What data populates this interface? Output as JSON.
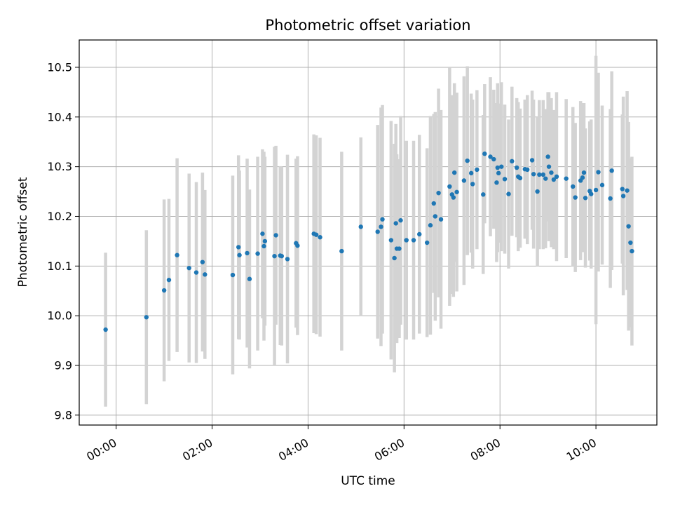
{
  "chart_data": {
    "type": "scatter",
    "title": "Photometric offset variation",
    "xlabel": "UTC time",
    "ylabel": "Photometric offset",
    "xlim": [
      -0.77,
      11.27
    ],
    "ylim": [
      9.78,
      10.555
    ],
    "x_unit": "hours",
    "xticks": [
      0,
      2,
      4,
      6,
      8,
      10
    ],
    "xtick_labels": [
      "00:00",
      "02:00",
      "04:00",
      "06:00",
      "08:00",
      "10:00"
    ],
    "yticks": [
      9.8,
      9.9,
      10.0,
      10.1,
      10.2,
      10.3,
      10.4,
      10.5
    ],
    "ytick_labels": [
      "9.8",
      "9.9",
      "10.0",
      "10.1",
      "10.2",
      "10.3",
      "10.4",
      "10.5"
    ],
    "grid": true,
    "colors": {
      "point": "#1f77b4",
      "errorbar": "#d3d3d3",
      "grid": "#b0b0b0",
      "axes": "#000000"
    },
    "series": [
      {
        "name": "photometric offset",
        "x": [
          -0.22,
          0.63,
          1.0,
          1.1,
          1.27,
          1.52,
          1.67,
          1.8,
          1.85,
          2.43,
          2.55,
          2.57,
          2.73,
          2.78,
          2.95,
          3.05,
          3.08,
          3.1,
          3.3,
          3.33,
          3.42,
          3.45,
          3.57,
          3.75,
          3.78,
          4.12,
          4.17,
          4.25,
          4.7,
          5.1,
          5.45,
          5.52,
          5.55,
          5.73,
          5.8,
          5.83,
          5.85,
          5.9,
          5.93,
          6.05,
          6.2,
          6.32,
          6.48,
          6.55,
          6.62,
          6.65,
          6.72,
          6.77,
          6.95,
          7.0,
          7.03,
          7.05,
          7.1,
          7.25,
          7.32,
          7.4,
          7.43,
          7.52,
          7.65,
          7.68,
          7.8,
          7.87,
          7.93,
          7.95,
          7.97,
          8.03,
          8.1,
          8.18,
          8.25,
          8.35,
          8.38,
          8.42,
          8.52,
          8.57,
          8.67,
          8.7,
          8.78,
          8.82,
          8.9,
          8.95,
          9.0,
          9.02,
          9.07,
          9.12,
          9.18,
          9.38,
          9.52,
          9.57,
          9.68,
          9.72,
          9.75,
          9.78,
          9.87,
          9.9,
          10.0,
          10.05,
          10.13,
          10.3,
          10.33,
          10.55,
          10.57,
          10.65,
          10.68,
          10.72,
          10.75
        ],
        "y": [
          9.972,
          9.997,
          10.051,
          10.072,
          10.122,
          10.096,
          10.087,
          10.108,
          10.083,
          10.082,
          10.138,
          10.122,
          10.126,
          10.074,
          10.125,
          10.165,
          10.14,
          10.15,
          10.12,
          10.162,
          10.121,
          10.12,
          10.114,
          10.146,
          10.141,
          10.165,
          10.163,
          10.158,
          10.13,
          10.179,
          10.169,
          10.179,
          10.194,
          10.152,
          10.116,
          10.186,
          10.135,
          10.135,
          10.192,
          10.152,
          10.152,
          10.164,
          10.147,
          10.182,
          10.226,
          10.2,
          10.247,
          10.194,
          10.26,
          10.244,
          10.238,
          10.288,
          10.249,
          10.272,
          10.312,
          10.287,
          10.265,
          10.294,
          10.244,
          10.326,
          10.32,
          10.315,
          10.268,
          10.298,
          10.287,
          10.3,
          10.275,
          10.245,
          10.311,
          10.298,
          10.28,
          10.277,
          10.295,
          10.294,
          10.313,
          10.285,
          10.25,
          10.284,
          10.284,
          10.276,
          10.32,
          10.3,
          10.288,
          10.274,
          10.28,
          10.276,
          10.26,
          10.238,
          10.272,
          10.278,
          10.288,
          10.237,
          10.251,
          10.245,
          10.253,
          10.289,
          10.263,
          10.236,
          10.292,
          10.255,
          10.241,
          10.252,
          10.18,
          10.147,
          10.13
        ],
        "yerr": [
          0.155,
          0.175,
          0.183,
          0.163,
          0.195,
          0.19,
          0.182,
          0.18,
          0.17,
          0.2,
          0.185,
          0.17,
          0.19,
          0.18,
          0.195,
          0.17,
          0.19,
          0.17,
          0.22,
          0.18,
          0.18,
          0.18,
          0.21,
          0.17,
          0.18,
          0.2,
          0.2,
          0.2,
          0.2,
          0.18,
          0.215,
          0.24,
          0.23,
          0.24,
          0.23,
          0.2,
          0.19,
          0.18,
          0.21,
          0.2,
          0.2,
          0.2,
          0.19,
          0.22,
          0.18,
          0.21,
          0.21,
          0.22,
          0.24,
          0.2,
          0.2,
          0.18,
          0.2,
          0.21,
          0.19,
          0.16,
          0.17,
          0.16,
          0.16,
          0.14,
          0.16,
          0.14,
          0.16,
          0.17,
          0.14,
          0.17,
          0.15,
          0.15,
          0.15,
          0.14,
          0.15,
          0.14,
          0.14,
          0.15,
          0.14,
          0.15,
          0.15,
          0.15,
          0.15,
          0.14,
          0.13,
          0.15,
          0.15,
          0.14,
          0.17,
          0.16,
          0.16,
          0.15,
          0.16,
          0.15,
          0.14,
          0.14,
          0.14,
          0.15,
          0.27,
          0.2,
          0.16,
          0.18,
          0.2,
          0.15,
          0.2,
          0.2,
          0.21,
          0.17,
          0.19
        ]
      }
    ]
  }
}
